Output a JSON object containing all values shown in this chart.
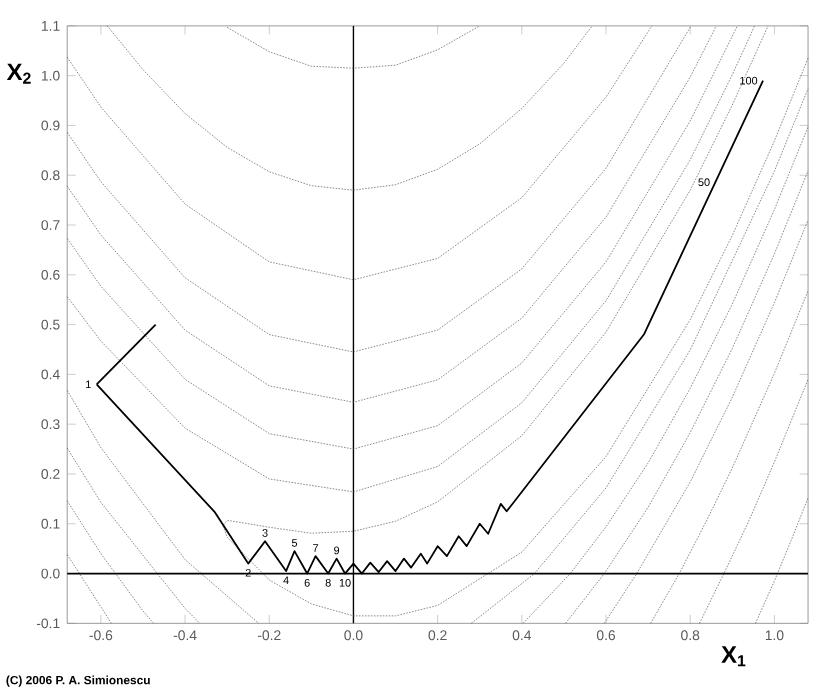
{
  "chart_data": {
    "type": "line",
    "xlabel": "X$_{1}$",
    "ylabel": "X$_{2}$",
    "xlim": [
      -0.68,
      1.08
    ],
    "ylim": [
      -0.1,
      1.1
    ],
    "xticks": [
      -0.6,
      -0.4,
      -0.2,
      {
        "value": 0,
        "label": "0.0"
      },
      0.2,
      0.4,
      0.6,
      0.8,
      {
        "value": 1,
        "label": "1.0"
      }
    ],
    "yticks": [
      -0.1,
      {
        "value": 0,
        "label": "0.0"
      },
      0.1,
      0.2,
      0.3,
      0.4,
      0.5,
      0.6,
      0.7,
      0.8,
      0.9,
      {
        "value": 1,
        "label": "1.0"
      },
      1.1
    ],
    "ref_lines": [
      {
        "axis": "x",
        "value": 0,
        "color": "#000000"
      },
      {
        "axis": "y",
        "value": 0,
        "color": "#000000"
      }
    ],
    "series": [
      {
        "color": "#555555",
        "line_style": "dotted",
        "x": [
          -0.3,
          -0.2,
          -0.1,
          0,
          0.1,
          0.2,
          0.3
        ],
        "values": [
          1.097,
          1.048,
          1.019,
          1.015,
          1.021,
          1.052,
          1.1
        ]
      },
      {
        "color": "#555555",
        "line_style": "dotted",
        "x": [
          0.955,
          1.0,
          1.04,
          1.08
        ],
        "values": [
          -0.1,
          -0.015,
          0.067,
          0.152
        ]
      },
      {
        "color": "#555555",
        "line_style": "dotted",
        "x": [
          -0.585,
          -0.5,
          -0.4,
          -0.3,
          -0.2,
          -0.1,
          0,
          0.1,
          0.2,
          0.3,
          0.4,
          0.5,
          0.567
        ],
        "values": [
          1.1,
          1.012,
          0.924,
          0.856,
          0.807,
          0.779,
          0.77,
          0.781,
          0.812,
          0.863,
          0.934,
          1.025,
          1.1
        ]
      },
      {
        "color": "#555555",
        "line_style": "dotted",
        "x": [
          0.822,
          0.88,
          0.94,
          1.0,
          1.08
        ],
        "values": [
          -0.1,
          0,
          0.107,
          0.224,
          0.39
        ]
      },
      {
        "color": "#555555",
        "line_style": "dotted",
        "x": [
          -0.68,
          -0.6,
          -0.4,
          -0.2,
          0,
          0.2,
          0.4,
          0.6,
          0.709
        ],
        "values": [
          1.037,
          0.937,
          0.742,
          0.626,
          0.59,
          0.633,
          0.755,
          0.957,
          1.1
        ]
      },
      {
        "color": "#555555",
        "line_style": "dotted",
        "x": [
          0.706,
          0.774,
          0.84,
          0.9,
          1.0,
          1.08
        ],
        "values": [
          -0.1,
          0,
          0.108,
          0.212,
          0.402,
          0.568
        ]
      },
      {
        "color": "#555555",
        "line_style": "dotted",
        "x": [
          -0.68,
          -0.6,
          -0.4,
          -0.2,
          0,
          0.2,
          0.4,
          0.6,
          0.802
        ],
        "values": [
          0.886,
          0.787,
          0.594,
          0.48,
          0.445,
          0.489,
          0.612,
          0.814,
          1.1
        ]
      },
      {
        "color": "#555555",
        "line_style": "dotted",
        "x": [
          -0.68,
          -0.6,
          -0.575
        ],
        "values": [
          0.038,
          -0.067,
          -0.1
        ]
      },
      {
        "color": "#555555",
        "line_style": "dotted",
        "x": [
          0.596,
          0.673,
          0.8,
          0.9,
          1.0,
          1.08
        ],
        "values": [
          -0.1,
          0,
          0.184,
          0.354,
          0.544,
          0.71
        ]
      },
      {
        "color": "#555555",
        "line_style": "dotted",
        "x": [
          -0.68,
          -0.6,
          -0.4,
          -0.2,
          0,
          0.2,
          0.4,
          0.6,
          0.8,
          0.862
        ],
        "values": [
          0.778,
          0.68,
          0.489,
          0.377,
          0.344,
          0.389,
          0.513,
          0.716,
          0.997,
          1.1
        ]
      },
      {
        "color": "#555555",
        "line_style": "dotted",
        "x": [
          -0.68,
          -0.6,
          -0.5,
          -0.475
        ],
        "values": [
          0.146,
          0.04,
          -0.075,
          -0.1
        ]
      },
      {
        "color": "#555555",
        "line_style": "dotted",
        "x": [
          0.504,
          0.596,
          0.7,
          0.8,
          0.9,
          1.0,
          1.08
        ],
        "values": [
          -0.1,
          0,
          0.133,
          0.283,
          0.452,
          0.642,
          0.809
        ]
      },
      {
        "color": "#555555",
        "line_style": "dotted",
        "x": [
          -0.68,
          -0.6,
          -0.4,
          -0.2,
          0,
          0.2,
          0.4,
          0.6,
          0.8,
          0.912
        ],
        "values": [
          0.673,
          0.577,
          0.39,
          0.281,
          0.25,
          0.297,
          0.423,
          0.626,
          0.909,
          1.1
        ]
      },
      {
        "color": "#555555",
        "line_style": "dotted",
        "x": [
          -0.68,
          -0.6,
          -0.4,
          -0.365
        ],
        "values": [
          0.252,
          0.143,
          -0.07,
          -0.1
        ]
      },
      {
        "color": "#555555",
        "line_style": "dotted",
        "x": [
          0.403,
          0.515,
          0.6,
          0.7,
          0.8,
          0.9,
          1.0,
          1.08
        ],
        "values": [
          -0.1,
          0,
          0.094,
          0.222,
          0.372,
          0.541,
          0.731,
          0.897
        ]
      },
      {
        "color": "#555555",
        "line_style": "dotted",
        "x": [
          -0.68,
          -0.6,
          -0.4,
          -0.2,
          0,
          0.2,
          0.4,
          0.6,
          0.8,
          0.9,
          0.953
        ],
        "values": [
          0.556,
          0.467,
          0.292,
          0.19,
          0.164,
          0.215,
          0.343,
          0.548,
          0.831,
          1.002,
          1.1
        ]
      },
      {
        "color": "#555555",
        "line_style": "dotted",
        "x": [
          -0.68,
          -0.6,
          -0.4,
          -0.225
        ],
        "values": [
          0.368,
          0.253,
          0.028,
          -0.1
        ]
      },
      {
        "color": "#555555",
        "line_style": "dotted",
        "x": [
          0.28,
          0.43,
          0.6,
          0.8,
          1.0,
          1.08
        ],
        "values": [
          -0.1,
          0,
          0.172,
          0.449,
          0.808,
          0.974
        ]
      },
      {
        "color": "#555555",
        "line_style": "dotted",
        "x": [
          1.08,
          1.0,
          0.9,
          0.8,
          0.6,
          0.4,
          0.2,
          0.1,
          0,
          -0.1,
          -0.2,
          -0.3,
          -0.31,
          -0.3,
          -0.2,
          -0.1,
          0,
          0.1,
          0.2,
          0.4,
          0.6,
          0.8,
          0.9,
          0.985
        ],
        "values": [
          1.035,
          0.869,
          0.679,
          0.51,
          0.235,
          0.043,
          -0.064,
          -0.085,
          -0.085,
          -0.061,
          -0.013,
          0.073,
          0.096,
          0.107,
          0.093,
          0.081,
          0.085,
          0.105,
          0.144,
          0.277,
          0.485,
          0.77,
          0.941,
          1.1
        ]
      },
      {
        "color": "#000000",
        "line_style": "solid",
        "x": [
          -0.61,
          -0.33,
          -0.25,
          -0.21,
          -0.16,
          -0.14,
          -0.11,
          -0.09,
          -0.06,
          -0.04,
          -0.02,
          0,
          0.02,
          0.04,
          0.06,
          0.08,
          0.1,
          0.12,
          0.137,
          0.16,
          0.175,
          0.2,
          0.222,
          0.25,
          0.269,
          0.3,
          0.32,
          0.35,
          0.364,
          0.69,
          0.973
        ],
        "values": [
          0.38,
          0.124,
          0.02,
          0.065,
          0.005,
          0.045,
          0.0,
          0.035,
          0.0,
          0.03,
          0.0,
          0.02,
          0.0,
          0.022,
          0.003,
          0.025,
          0.005,
          0.03,
          0.012,
          0.04,
          0.02,
          0.055,
          0.035,
          0.075,
          0.055,
          0.1,
          0.08,
          0.14,
          0.125,
          0.48,
          0.99
        ]
      },
      {
        "color": "#000000",
        "line_style": "solid",
        "x": [
          -0.61,
          -0.47
        ],
        "values": [
          0.38,
          0.5
        ]
      }
    ],
    "annotations": [
      {
        "text": "1",
        "x": -0.61,
        "y": 0.38
      },
      {
        "text": "2",
        "x": -0.25,
        "y": 0.02
      },
      {
        "text": "3",
        "x": -0.21,
        "y": 0.065
      },
      {
        "text": "4",
        "x": -0.16,
        "y": 0.005
      },
      {
        "text": "5",
        "x": -0.14,
        "y": 0.045
      },
      {
        "text": "6",
        "x": -0.11,
        "y": 0.0
      },
      {
        "text": "7",
        "x": -0.09,
        "y": 0.035
      },
      {
        "text": "8",
        "x": -0.06,
        "y": 0.0
      },
      {
        "text": "9",
        "x": -0.04,
        "y": 0.03
      },
      {
        "text": "10",
        "x": -0.02,
        "y": 0.0
      },
      {
        "text": "50",
        "x": 0.86,
        "y": 0.786
      },
      {
        "text": "100",
        "x": 0.973,
        "y": 0.99
      },
      "(C) 2006  P. A. Simionescu"
    ]
  }
}
